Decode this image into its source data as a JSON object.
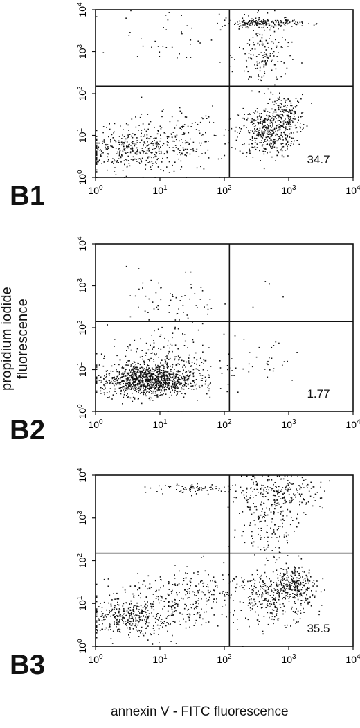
{
  "figure": {
    "ylabel": "propidium iodide fluorescence",
    "xlabel": "annexin V - FITC fluorescence"
  },
  "chart_data": [
    {
      "type": "scatter",
      "panel_label": "B1",
      "xscale": "log",
      "yscale": "log",
      "xlim": [
        1,
        10000
      ],
      "ylim": [
        1,
        10000
      ],
      "x_ticks": [
        "10^0",
        "10^1",
        "10^2",
        "10^3",
        "10^4"
      ],
      "y_ticks": [
        "10^0",
        "10^1",
        "10^2",
        "10^3",
        "10^4"
      ],
      "quadrant_gate": {
        "x": 120,
        "y": 150
      },
      "annotation": "34.7",
      "clusters": [
        {
          "center": [
            2.8,
            4.5
          ],
          "spread": [
            0.45,
            0.22
          ],
          "count": 260
        },
        {
          "center": [
            8,
            6
          ],
          "spread": [
            0.45,
            0.35
          ],
          "count": 220
        },
        {
          "center": [
            40,
            10
          ],
          "spread": [
            0.35,
            0.3
          ],
          "count": 60
        },
        {
          "center": [
            450,
            12
          ],
          "spread": [
            0.22,
            0.3
          ],
          "count": 380
        },
        {
          "center": [
            900,
            30
          ],
          "spread": [
            0.15,
            0.25
          ],
          "count": 160
        },
        {
          "center": [
            400,
            5000
          ],
          "spread": [
            0.3,
            0.05
          ],
          "count": 170
        },
        {
          "center": [
            400,
            800
          ],
          "spread": [
            0.2,
            0.4
          ],
          "count": 160
        },
        {
          "center": [
            15,
            2500
          ],
          "spread": [
            0.4,
            0.35
          ],
          "count": 40
        }
      ]
    },
    {
      "type": "scatter",
      "panel_label": "B2",
      "xscale": "log",
      "yscale": "log",
      "xlim": [
        1,
        10000
      ],
      "ylim": [
        1,
        10000
      ],
      "x_ticks": [
        "10^0",
        "10^1",
        "10^2",
        "10^3",
        "10^4"
      ],
      "y_ticks": [
        "10^0",
        "10^1",
        "10^2",
        "10^3",
        "10^4"
      ],
      "quadrant_gate": {
        "x": 120,
        "y": 140
      },
      "annotation": "1.77",
      "clusters": [
        {
          "center": [
            6,
            5.5
          ],
          "spread": [
            0.35,
            0.18
          ],
          "count": 900
        },
        {
          "center": [
            12,
            12
          ],
          "spread": [
            0.4,
            0.35
          ],
          "count": 320
        },
        {
          "center": [
            15,
            300
          ],
          "spread": [
            0.35,
            0.45
          ],
          "count": 80
        },
        {
          "center": [
            400,
            15
          ],
          "spread": [
            0.3,
            0.3
          ],
          "count": 30
        },
        {
          "center": [
            500,
            1000
          ],
          "spread": [
            0.4,
            0.5
          ],
          "count": 6
        }
      ]
    },
    {
      "type": "scatter",
      "panel_label": "B3",
      "xscale": "log",
      "yscale": "log",
      "xlim": [
        1,
        10000
      ],
      "ylim": [
        1,
        10000
      ],
      "x_ticks": [
        "10^0",
        "10^1",
        "10^2",
        "10^3",
        "10^4"
      ],
      "y_ticks": [
        "10^0",
        "10^1",
        "10^2",
        "10^3",
        "10^4"
      ],
      "quadrant_gate": {
        "x": 120,
        "y": 150
      },
      "annotation": "35.5",
      "clusters": [
        {
          "center": [
            2.8,
            4.5
          ],
          "spread": [
            0.3,
            0.18
          ],
          "count": 250
        },
        {
          "center": [
            10,
            8
          ],
          "spread": [
            0.5,
            0.35
          ],
          "count": 300
        },
        {
          "center": [
            40,
            20
          ],
          "spread": [
            0.35,
            0.3
          ],
          "count": 120
        },
        {
          "center": [
            600,
            15
          ],
          "spread": [
            0.3,
            0.3
          ],
          "count": 320
        },
        {
          "center": [
            1200,
            30
          ],
          "spread": [
            0.15,
            0.2
          ],
          "count": 200
        },
        {
          "center": [
            600,
            3500
          ],
          "spread": [
            0.35,
            0.25
          ],
          "count": 250
        },
        {
          "center": [
            40,
            5000
          ],
          "spread": [
            0.35,
            0.05
          ],
          "count": 80
        },
        {
          "center": [
            500,
            600
          ],
          "spread": [
            0.25,
            0.4
          ],
          "count": 120
        }
      ]
    }
  ]
}
